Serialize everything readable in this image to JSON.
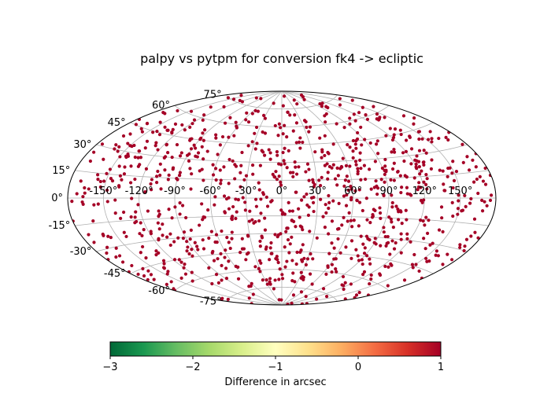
{
  "chart_data": {
    "type": "scatter",
    "projection": "aitoff",
    "title": "palpy vs pytpm for conversion fk4 -> ecliptic",
    "longitude_ticks": [
      "-150°",
      "-120°",
      "-90°",
      "-60°",
      "-30°",
      "0°",
      "30°",
      "60°",
      "90°",
      "120°",
      "150°"
    ],
    "longitude_tick_values": [
      -150,
      -120,
      -90,
      -60,
      -30,
      0,
      30,
      60,
      90,
      120,
      150
    ],
    "latitude_ticks": [
      "-75°",
      "-60°",
      "-45°",
      "-30°",
      "-15°",
      "0°",
      "15°",
      "30°",
      "45°",
      "60°",
      "75°"
    ],
    "latitude_tick_values": [
      -75,
      -60,
      -45,
      -30,
      -15,
      0,
      15,
      30,
      45,
      60,
      75
    ],
    "grid": true,
    "point_count": 1000,
    "point_value": 1,
    "marker_color": "#a50026",
    "colorbar": {
      "label": "Difference in arcsec",
      "ticks": [
        "−3",
        "−2",
        "−1",
        "0",
        "1"
      ],
      "tick_values": [
        -3,
        -2,
        -1,
        0,
        1
      ],
      "range": [
        -3,
        1
      ],
      "colormap": "RdYlGn_r",
      "colors": [
        "#006837",
        "#1a9850",
        "#66bd63",
        "#a6d96a",
        "#d9ef8b",
        "#ffffbf",
        "#fee08b",
        "#fdae61",
        "#f46d43",
        "#d73027",
        "#a50026"
      ]
    }
  }
}
